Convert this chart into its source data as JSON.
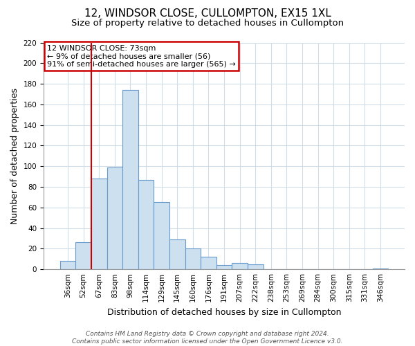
{
  "title": "12, WINDSOR CLOSE, CULLOMPTON, EX15 1XL",
  "subtitle": "Size of property relative to detached houses in Cullompton",
  "xlabel": "Distribution of detached houses by size in Cullompton",
  "ylabel": "Number of detached properties",
  "bar_labels": [
    "36sqm",
    "52sqm",
    "67sqm",
    "83sqm",
    "98sqm",
    "114sqm",
    "129sqm",
    "145sqm",
    "160sqm",
    "176sqm",
    "191sqm",
    "207sqm",
    "222sqm",
    "238sqm",
    "253sqm",
    "269sqm",
    "284sqm",
    "300sqm",
    "315sqm",
    "331sqm",
    "346sqm"
  ],
  "bar_values": [
    8,
    26,
    88,
    99,
    174,
    87,
    65,
    29,
    20,
    12,
    4,
    6,
    5,
    0,
    0,
    0,
    0,
    0,
    0,
    0,
    1
  ],
  "bar_color": "#cce0f0",
  "bar_edge_color": "#6699cc",
  "vline_x_index": 2,
  "vline_color": "#cc0000",
  "ylim": [
    0,
    220
  ],
  "yticks": [
    0,
    20,
    40,
    60,
    80,
    100,
    120,
    140,
    160,
    180,
    200,
    220
  ],
  "annotation_title": "12 WINDSOR CLOSE: 73sqm",
  "annotation_line1": "← 9% of detached houses are smaller (56)",
  "annotation_line2": "91% of semi-detached houses are larger (565) →",
  "annotation_box_color": "#ffffff",
  "annotation_border_color": "#cc0000",
  "footer_line1": "Contains HM Land Registry data © Crown copyright and database right 2024.",
  "footer_line2": "Contains public sector information licensed under the Open Government Licence v3.0.",
  "title_fontsize": 11,
  "subtitle_fontsize": 9.5,
  "ylabel_fontsize": 9,
  "xlabel_fontsize": 9,
  "tick_fontsize": 7.5,
  "annotation_fontsize": 8,
  "footer_fontsize": 6.5,
  "grid_color": "#d0dce8",
  "spine_color": "#999999"
}
